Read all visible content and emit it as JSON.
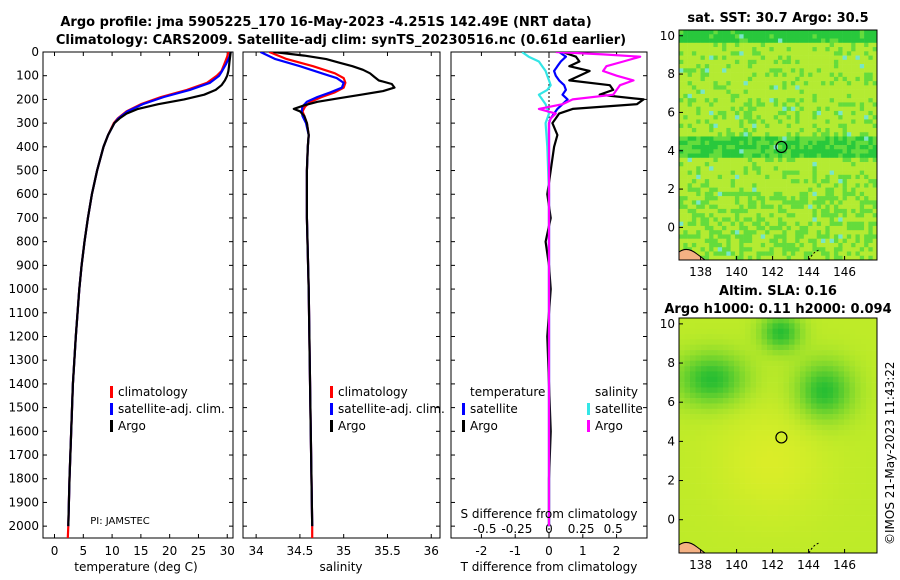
{
  "header": {
    "line1": "Argo profile: jma 5905225_170 16-May-2023 -4.251S 142.49E (NRT data)",
    "line2": "Climatology: CARS2009. Satellite-adj clim: synTS_20230516.nc (0.61d earlier)"
  },
  "credit": "©IMOS 21-May-2023 11:43:22",
  "pi_label": "PI: JAMSTEC",
  "colors": {
    "climatology": "#ff0000",
    "satellite_adj": "#0000ff",
    "argo": "#000000",
    "salinity_sat": "#33e6e6",
    "salinity_argo": "#ff00ff"
  },
  "chart_data": [
    {
      "id": "temperature",
      "type": "line",
      "xlabel": "temperature (deg C)",
      "xlim": [
        -2,
        31
      ],
      "xticks": [
        0,
        5,
        10,
        15,
        20,
        25,
        30
      ],
      "ylim": [
        0,
        2050
      ],
      "yticks": [
        0,
        100,
        200,
        300,
        400,
        500,
        600,
        700,
        800,
        900,
        1000,
        1100,
        1200,
        1300,
        1400,
        1500,
        1600,
        1700,
        1800,
        1900,
        2000
      ],
      "legend": [
        "climatology",
        "satellite-adj. clim.",
        "Argo"
      ],
      "series": [
        {
          "name": "climatology",
          "color": "#ff0000",
          "depth": [
            0,
            20,
            50,
            80,
            100,
            130,
            160,
            190,
            220,
            250,
            280,
            300,
            350,
            400,
            500,
            600,
            700,
            800,
            900,
            1000,
            1200,
            1400,
            1600,
            1800,
            2000,
            2050
          ],
          "values": [
            30.2,
            30.0,
            29.5,
            29.0,
            28.2,
            26.5,
            23.0,
            18.5,
            15.0,
            12.5,
            11.0,
            10.3,
            9.3,
            8.5,
            7.4,
            6.5,
            5.8,
            5.2,
            4.7,
            4.3,
            3.7,
            3.2,
            2.9,
            2.6,
            2.4,
            2.3
          ]
        },
        {
          "name": "satellite-adj. clim.",
          "color": "#0000ff",
          "depth": [
            0,
            20,
            50,
            80,
            100,
            130,
            160,
            190,
            220,
            250,
            280,
            300,
            350,
            400,
            500,
            600,
            700,
            800,
            900,
            1000,
            1200,
            1400,
            1600,
            1800,
            2000
          ],
          "values": [
            30.6,
            30.4,
            29.8,
            29.1,
            28.6,
            27.0,
            23.5,
            19.0,
            15.3,
            12.7,
            11.1,
            10.4,
            9.3,
            8.5,
            7.4,
            6.5,
            5.8,
            5.2,
            4.7,
            4.3,
            3.7,
            3.2,
            2.9,
            2.6,
            2.4
          ]
        },
        {
          "name": "Argo",
          "color": "#000000",
          "depth": [
            0,
            20,
            40,
            60,
            80,
            100,
            120,
            140,
            160,
            180,
            200,
            220,
            240,
            260,
            280,
            300,
            350,
            400,
            500,
            600,
            700,
            800,
            900,
            1000,
            1200,
            1400,
            1600,
            1800,
            2000
          ],
          "values": [
            30.6,
            30.5,
            30.4,
            30.3,
            30.2,
            30.0,
            29.6,
            29.0,
            28.0,
            26.0,
            22.5,
            18.0,
            14.5,
            12.5,
            11.3,
            10.4,
            9.3,
            8.5,
            7.4,
            6.5,
            5.8,
            5.2,
            4.7,
            4.3,
            3.7,
            3.2,
            2.9,
            2.6,
            2.4
          ]
        }
      ]
    },
    {
      "id": "salinity",
      "type": "line",
      "xlabel": "salinity",
      "xlim": [
        33.85,
        36.1
      ],
      "xticks": [
        34,
        34.5,
        35,
        35.5,
        36
      ],
      "ylim": [
        0,
        2050
      ],
      "legend": [
        "climatology",
        "satellite-adj. clim.",
        "Argo"
      ],
      "series": [
        {
          "name": "climatology",
          "color": "#ff0000",
          "depth": [
            0,
            30,
            60,
            90,
            110,
            130,
            150,
            170,
            190,
            210,
            230,
            250,
            270,
            300,
            350,
            400,
            500,
            700,
            1000,
            1500,
            2000,
            2050
          ],
          "values": [
            34.15,
            34.35,
            34.65,
            34.9,
            35.0,
            35.02,
            35.0,
            34.9,
            34.75,
            34.62,
            34.56,
            34.53,
            34.55,
            34.58,
            34.6,
            34.59,
            34.58,
            34.58,
            34.6,
            34.62,
            34.64,
            34.64
          ]
        },
        {
          "name": "satellite-adj. clim.",
          "color": "#0000ff",
          "depth": [
            0,
            30,
            60,
            90,
            110,
            130,
            150,
            170,
            190,
            210,
            230,
            250,
            270,
            300,
            350,
            400,
            500,
            700,
            1000,
            1500,
            2000
          ],
          "values": [
            34.05,
            34.22,
            34.5,
            34.75,
            34.92,
            35.0,
            34.98,
            34.85,
            34.7,
            34.58,
            34.53,
            34.52,
            34.53,
            34.57,
            34.6,
            34.59,
            34.58,
            34.58,
            34.6,
            34.62,
            34.64
          ]
        },
        {
          "name": "Argo",
          "color": "#000000",
          "depth": [
            0,
            15,
            30,
            45,
            60,
            75,
            90,
            105,
            120,
            135,
            150,
            165,
            180,
            195,
            210,
            225,
            240,
            250,
            270,
            300,
            350,
            400,
            500,
            700,
            1000,
            1500,
            2000
          ],
          "values": [
            34.2,
            34.55,
            34.8,
            34.95,
            35.1,
            35.22,
            35.3,
            35.35,
            35.4,
            35.55,
            35.58,
            35.45,
            35.2,
            34.95,
            34.7,
            34.55,
            34.43,
            34.5,
            34.55,
            34.58,
            34.6,
            34.59,
            34.58,
            34.58,
            34.6,
            34.62,
            34.64
          ]
        }
      ]
    },
    {
      "id": "difference",
      "type": "line",
      "xlabel": "T difference from climatology",
      "top_xlabel": "S difference from climatology",
      "xlim": [
        -2.9,
        2.9
      ],
      "xticks": [
        -2,
        -1,
        0,
        1,
        2
      ],
      "top_ticks": [
        {
          "label": "-0.5",
          "t": -1.9
        },
        {
          "label": "-0.25",
          "t": -0.95
        },
        {
          "label": "0",
          "t": 0
        },
        {
          "label": "0.25",
          "t": 0.95
        },
        {
          "label": "0.5",
          "t": 1.9
        }
      ],
      "ylim": [
        0,
        2050
      ],
      "legend_temperature_title": "temperature",
      "legend_salinity_title": "salinity",
      "legend_temperature": [
        "satellite",
        "Argo"
      ],
      "legend_salinity": [
        "satellite",
        "Argo"
      ],
      "series": [
        {
          "name": "T satellite",
          "color": "#0000ff",
          "depth": [
            0,
            20,
            40,
            60,
            80,
            100,
            120,
            140,
            160,
            180,
            200,
            220,
            240,
            260,
            280,
            300,
            400,
            600,
            1000,
            2000
          ],
          "values": [
            0.3,
            0.5,
            0.35,
            0.25,
            0.15,
            0.2,
            0.3,
            0.45,
            0.5,
            0.4,
            0.55,
            0.4,
            0.25,
            0.15,
            0.05,
            0.0,
            0.0,
            0.0,
            0.0,
            0.0
          ]
        },
        {
          "name": "T Argo",
          "color": "#000000",
          "depth": [
            0,
            20,
            40,
            60,
            80,
            100,
            120,
            140,
            160,
            180,
            200,
            220,
            240,
            260,
            280,
            300,
            350,
            400,
            500,
            600,
            700,
            800,
            900,
            1000,
            1200,
            1400,
            1600,
            1800,
            2000
          ],
          "values": [
            0.4,
            0.8,
            0.9,
            0.6,
            1.2,
            0.9,
            0.6,
            1.8,
            1.9,
            1.5,
            2.8,
            2.6,
            0.7,
            0.3,
            0.2,
            0.1,
            0.25,
            0.15,
            0.05,
            -0.05,
            0.05,
            -0.1,
            0.0,
            0.05,
            -0.05,
            0.0,
            0.05,
            0.0,
            0.0
          ]
        },
        {
          "name": "S satellite",
          "color": "#33e6e6",
          "depth": [
            0,
            20,
            40,
            60,
            80,
            100,
            120,
            140,
            160,
            180,
            200,
            220,
            240,
            260,
            280,
            300,
            400,
            600,
            1000,
            2000
          ],
          "values": [
            -0.8,
            -0.6,
            -0.3,
            -0.2,
            -0.1,
            -0.05,
            0.0,
            0.05,
            -0.05,
            -0.3,
            -0.2,
            -0.1,
            -0.05,
            0.0,
            -0.05,
            -0.1,
            -0.05,
            0.0,
            0.0,
            0.0
          ]
        },
        {
          "name": "S Argo",
          "color": "#ff00ff",
          "depth": [
            0,
            10,
            20,
            40,
            60,
            80,
            100,
            120,
            140,
            160,
            180,
            200,
            220,
            240,
            260,
            280,
            300,
            400,
            600,
            1000,
            2000
          ],
          "values": [
            0.2,
            1.6,
            2.7,
            2.2,
            1.7,
            1.6,
            2.0,
            2.5,
            2.1,
            2.0,
            1.9,
            0.7,
            0.4,
            -0.3,
            0.2,
            0.05,
            0.0,
            0.0,
            0.0,
            0.0,
            0.0
          ]
        }
      ]
    },
    {
      "id": "sst_map",
      "type": "heatmap",
      "title": "sat. SST: 30.7 Argo: 30.5",
      "xticks": [
        138,
        140,
        142,
        144,
        146
      ],
      "yticks": [
        10,
        8,
        6,
        4,
        2,
        0
      ],
      "xlim": [
        136.8,
        147.8
      ],
      "ylim": [
        -1.7,
        10.3
      ],
      "marker": {
        "lon": 142.49,
        "lat": 4.2
      }
    },
    {
      "id": "sla_map",
      "type": "heatmap",
      "title": "Altim. SLA: 0.16",
      "subtitle": "Argo h1000: 0.11 h2000: 0.094",
      "xticks": [
        138,
        140,
        142,
        144,
        146
      ],
      "yticks": [
        10,
        8,
        6,
        4,
        2,
        0
      ],
      "xlim": [
        136.8,
        147.8
      ],
      "ylim": [
        -1.7,
        10.3
      ],
      "marker": {
        "lon": 142.49,
        "lat": 4.2
      }
    }
  ]
}
